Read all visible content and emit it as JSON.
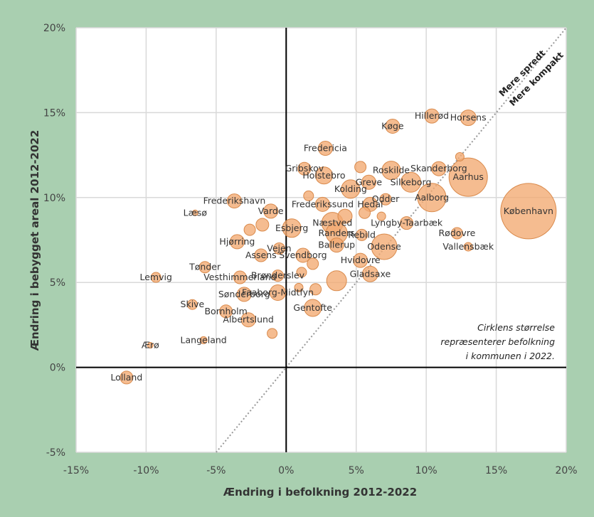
{
  "chart_data": {
    "type": "scatter",
    "title": "",
    "xlabel": "Ændring i befolkning 2012-2022",
    "ylabel": "Ændring i bebygget areal 2012-2022",
    "xlim": [
      -15,
      20
    ],
    "ylim": [
      -5,
      20
    ],
    "x_ticks": [
      "-15%",
      "-10%",
      "-5%",
      "0%",
      "5%",
      "10%",
      "15%",
      "20%"
    ],
    "y_ticks": [
      "-5%",
      "0%",
      "5%",
      "10%",
      "15%",
      "20%"
    ],
    "grid": true,
    "diagonal_labels": {
      "upper": "Mere spredt",
      "lower": "Mere kompakt"
    },
    "note": [
      "Cirklens størrelse",
      "repræsenterer befolkning",
      "i kommunen i 2022."
    ],
    "colors": {
      "bubble_fill": "#f2a971",
      "bubble_stroke": "#d98a4c",
      "background": "#a9cfb0"
    },
    "points": [
      {
        "label": "København",
        "x": 17.3,
        "y": 9.2,
        "r": 39
      },
      {
        "label": "Aarhus",
        "x": 13.0,
        "y": 11.2,
        "r": 27
      },
      {
        "label": "Horsens",
        "x": 13.0,
        "y": 14.7,
        "r": 11
      },
      {
        "label": "Hillerød",
        "x": 10.4,
        "y": 14.8,
        "r": 10
      },
      {
        "label": "Køge",
        "x": 7.6,
        "y": 14.2,
        "r": 10
      },
      {
        "label": "Fredericia",
        "x": 2.8,
        "y": 12.9,
        "r": 10
      },
      {
        "label": "Skanderborg",
        "x": 10.9,
        "y": 11.7,
        "r": 10
      },
      {
        "label": "Roskilde",
        "x": 7.5,
        "y": 11.6,
        "r": 13
      },
      {
        "label": "Silkeborg",
        "x": 8.9,
        "y": 10.9,
        "r": 14
      },
      {
        "label": "Aalborg",
        "x": 10.4,
        "y": 10.0,
        "r": 20
      },
      {
        "label": "Gribskov",
        "x": 1.3,
        "y": 11.7,
        "r": 9
      },
      {
        "label": "Holstebro",
        "x": 2.7,
        "y": 11.3,
        "r": 12
      },
      {
        "label": "Greve",
        "x": 5.9,
        "y": 10.9,
        "r": 10
      },
      {
        "label": "Kolding",
        "x": 4.6,
        "y": 10.5,
        "r": 13
      },
      {
        "label": "Odder",
        "x": 7.1,
        "y": 9.9,
        "r": 8
      },
      {
        "label": "Frederikssund",
        "x": 2.6,
        "y": 9.6,
        "r": 10
      },
      {
        "label": "Hedal",
        "x": 6.0,
        "y": 9.6,
        "r": 10
      },
      {
        "label": "Frederikshavn",
        "x": -3.7,
        "y": 9.8,
        "r": 10
      },
      {
        "label": "Varde",
        "x": -1.1,
        "y": 9.2,
        "r": 10
      },
      {
        "label": "Læsø",
        "x": -6.5,
        "y": 9.1,
        "r": 4
      },
      {
        "label": "Næstved",
        "x": 3.3,
        "y": 8.5,
        "r": 15
      },
      {
        "label": "Esbjerg",
        "x": 0.4,
        "y": 8.2,
        "r": 13
      },
      {
        "label": "Randers",
        "x": 3.6,
        "y": 7.9,
        "r": 15
      },
      {
        "label": "Rebild",
        "x": 5.4,
        "y": 7.8,
        "r": 8
      },
      {
        "label": "Lyngby-Taarbæk",
        "x": 8.6,
        "y": 8.5,
        "r": 9
      },
      {
        "label": "Rødovre",
        "x": 12.2,
        "y": 7.9,
        "r": 8
      },
      {
        "label": "Odense",
        "x": 7.0,
        "y": 7.1,
        "r": 18
      },
      {
        "label": "Vallensbæk",
        "x": 13.0,
        "y": 7.1,
        "r": 6
      },
      {
        "label": "Ballerup",
        "x": 3.6,
        "y": 7.2,
        "r": 10
      },
      {
        "label": "Hjørring",
        "x": -3.5,
        "y": 7.4,
        "r": 10
      },
      {
        "label": "Vejen",
        "x": -0.5,
        "y": 7.0,
        "r": 8
      },
      {
        "label": "Assens",
        "x": -1.8,
        "y": 6.6,
        "r": 9
      },
      {
        "label": "Svendborg",
        "x": 1.2,
        "y": 6.6,
        "r": 10
      },
      {
        "label": "Hvidovre",
        "x": 5.3,
        "y": 6.3,
        "r": 10
      },
      {
        "label": "Tønder",
        "x": -5.8,
        "y": 5.9,
        "r": 8
      },
      {
        "label": "Vesthimmerland",
        "x": -3.3,
        "y": 5.3,
        "r": 9
      },
      {
        "label": "Brønderslev",
        "x": -0.6,
        "y": 5.4,
        "r": 8
      },
      {
        "label": "Gladsaxe",
        "x": 6.0,
        "y": 5.5,
        "r": 11
      },
      {
        "label": "Lemvig",
        "x": -9.3,
        "y": 5.3,
        "r": 7
      },
      {
        "label": "Sønderborg",
        "x": -3.0,
        "y": 4.3,
        "r": 10
      },
      {
        "label": "Faaborg-Midtfyn",
        "x": -0.6,
        "y": 4.4,
        "r": 11
      },
      {
        "label": "Skive",
        "x": -6.7,
        "y": 3.7,
        "r": 7
      },
      {
        "label": "Bornholm",
        "x": -4.3,
        "y": 3.3,
        "r": 9
      },
      {
        "label": "Gentofte",
        "x": 1.9,
        "y": 3.5,
        "r": 12
      },
      {
        "label": "Albertslund",
        "x": -2.7,
        "y": 2.8,
        "r": 10
      },
      {
        "label": "Langeland",
        "x": -5.9,
        "y": 1.6,
        "r": 5
      },
      {
        "label": "Ærø",
        "x": -9.7,
        "y": 1.3,
        "r": 4
      },
      {
        "label": "Lolland",
        "x": -11.4,
        "y": -0.6,
        "r": 9
      },
      {
        "label": "",
        "x": 3.6,
        "y": 5.1,
        "r": 14
      },
      {
        "label": "",
        "x": 4.2,
        "y": 8.9,
        "r": 10
      },
      {
        "label": "",
        "x": 12.4,
        "y": 12.4,
        "r": 6
      },
      {
        "label": "",
        "x": 1.6,
        "y": 10.1,
        "r": 7
      },
      {
        "label": "",
        "x": 0.9,
        "y": 4.7,
        "r": 6
      },
      {
        "label": "",
        "x": -1.0,
        "y": 2.0,
        "r": 7
      },
      {
        "label": "",
        "x": -2.6,
        "y": 8.1,
        "r": 8
      },
      {
        "label": "",
        "x": 1.9,
        "y": 6.1,
        "r": 8
      },
      {
        "label": "",
        "x": 1.1,
        "y": 5.6,
        "r": 7
      },
      {
        "label": "",
        "x": 2.1,
        "y": 4.6,
        "r": 8
      },
      {
        "label": "",
        "x": 5.3,
        "y": 11.8,
        "r": 8
      },
      {
        "label": "",
        "x": -1.7,
        "y": 8.4,
        "r": 9
      },
      {
        "label": "",
        "x": 5.6,
        "y": 9.1,
        "r": 8
      },
      {
        "label": "",
        "x": 6.8,
        "y": 8.9,
        "r": 6
      }
    ]
  }
}
